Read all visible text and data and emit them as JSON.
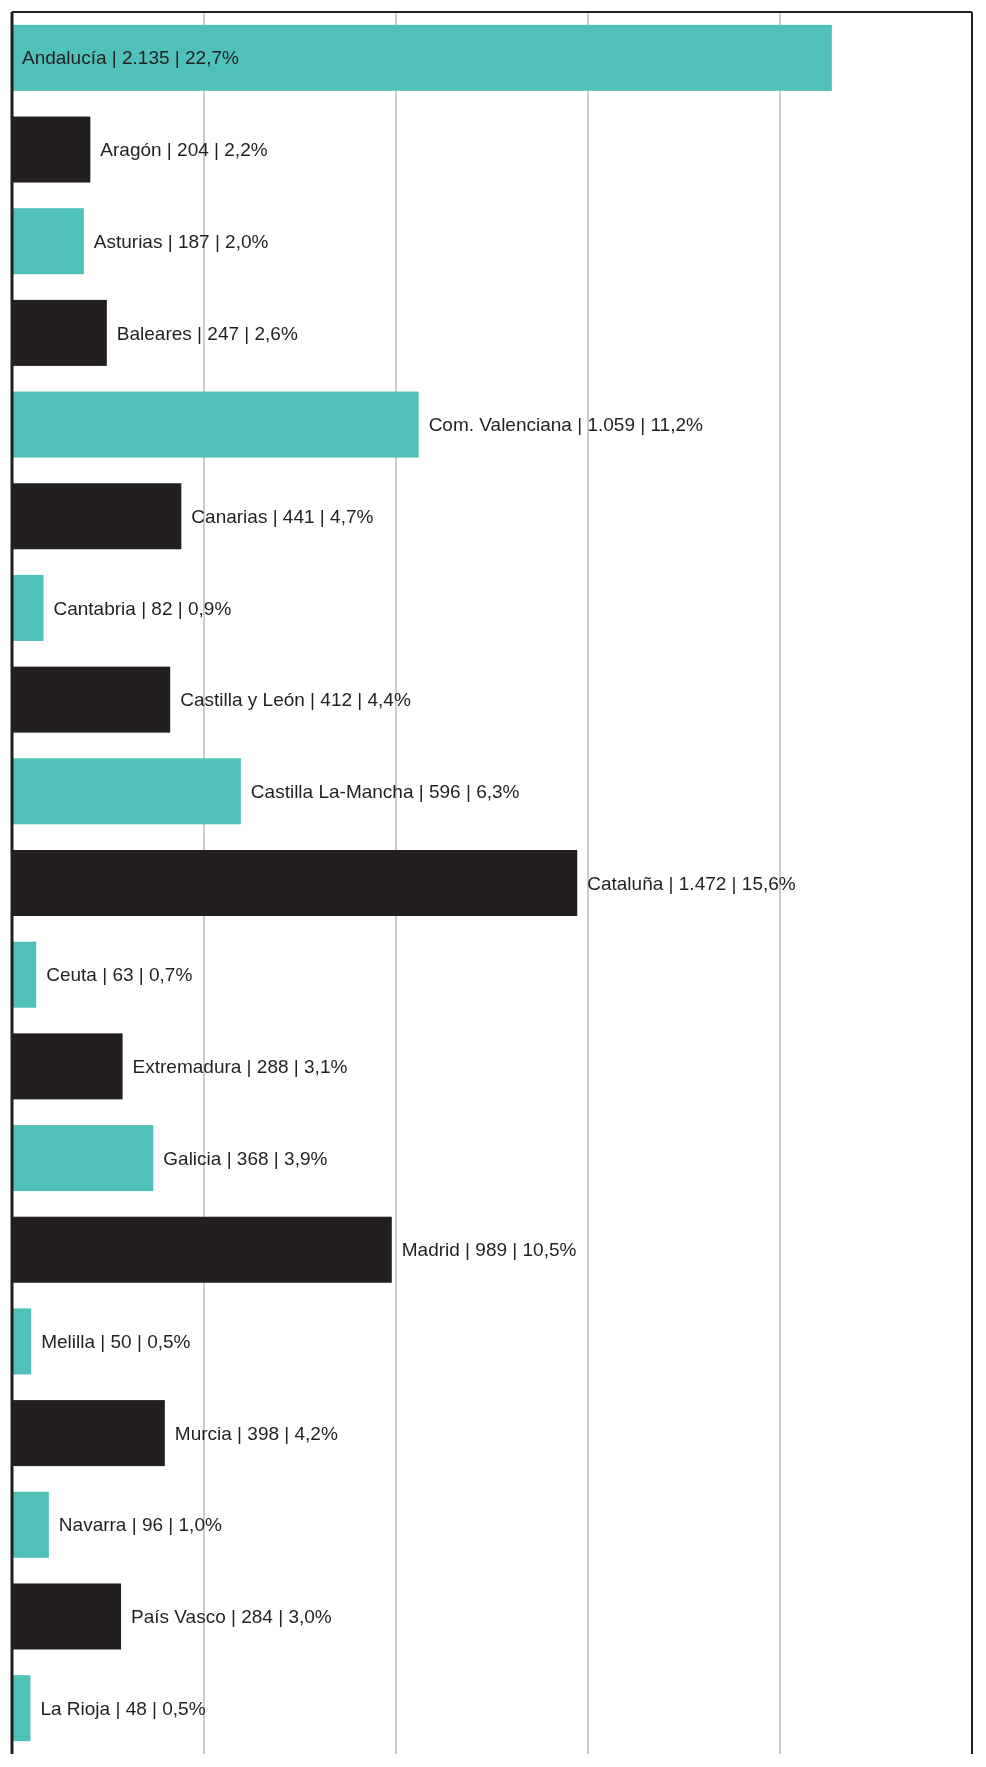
{
  "chart_data": {
    "type": "bar",
    "orientation": "horizontal",
    "categories": [
      null,
      null,
      null,
      null,
      null,
      null,
      null,
      null,
      null,
      null,
      null,
      null,
      null,
      null,
      null,
      null,
      null,
      null,
      null
    ],
    "values": [
      2135,
      204,
      187,
      247,
      1059,
      441,
      82,
      412,
      596,
      1472,
      63,
      288,
      368,
      989,
      50,
      398,
      96,
      284,
      48
    ],
    "colors": [
      "#4fc1b9",
      "#231f20",
      "#4fc1b9",
      "#231f20",
      "#4fc1b9",
      "#231f20",
      "#4fc1b9",
      "#231f20",
      "#4fc1b9",
      "#231f20",
      "#4fc1b9",
      "#231f20",
      "#4fc1b9",
      "#231f20",
      "#4fc1b9",
      "#231f20",
      "#4fc1b9",
      "#231f20",
      "#4fc1b9"
    ],
    "value_labels": [
      "Andalucía | 2.135 | 22,7%",
      "Aragón | 204 | 2,2%",
      "Asturias | 187 | 2,0%",
      "Baleares | 247 | 2,6%",
      "Com. Valenciana | 1.059 | 11,2%",
      "Canarias | 441 | 4,7%",
      "Cantabria | 82 | 0,9%",
      "Castilla y León | 412 | 4,4%",
      "Castilla La-Mancha | 596 | 6,3%",
      "Cataluña | 1.472 | 15,6%",
      "Ceuta | 63 | 0,7%",
      "Extremadura | 288 | 3,1%",
      "Galicia | 368 | 3,9%",
      "Madrid | 989 | 10,5%",
      "Melilla | 50 | 0,5%",
      "Murcia | 398 | 4,2%",
      "Navarra | 96 | 1,0%",
      "País Vasco | 284 | 3,0%",
      "La Rioja | 48 | 0,5%"
    ],
    "xlim": [
      0,
      2500
    ],
    "xticks": [
      {
        "value": 0,
        "label": null
      },
      {
        "value": 500,
        "label": null
      },
      {
        "value": 1000,
        "label": null
      },
      {
        "value": 1500,
        "label": null
      },
      {
        "value": 2000,
        "label": null
      },
      {
        "value": 2500,
        "label": null
      }
    ],
    "grid": "x"
  }
}
